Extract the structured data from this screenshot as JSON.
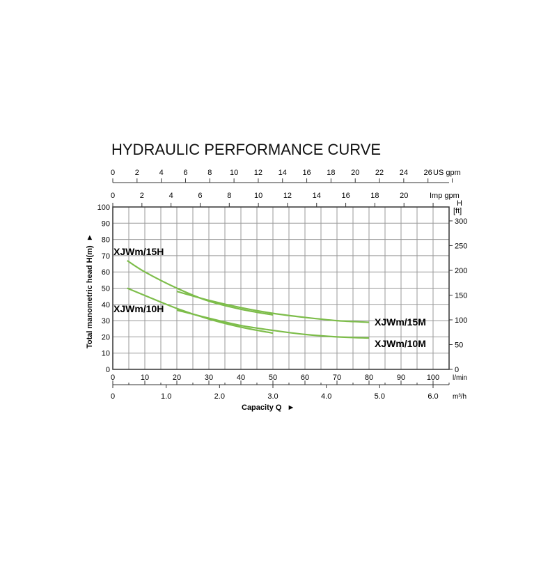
{
  "chart_data": {
    "type": "line",
    "title": "HYDRAULIC PERFORMANCE CURVE",
    "xlabel": "Capacity Q",
    "ylabel": "Total manometric head H(m)",
    "right_axis_label": [
      "H",
      "[ft]"
    ],
    "xlim": [
      0,
      105
    ],
    "ylim": [
      0,
      100
    ],
    "grid": true,
    "x_ticks_lmin": [
      0,
      10,
      20,
      30,
      40,
      50,
      60,
      70,
      80,
      90,
      100
    ],
    "x_unit_lmin": "l/min",
    "x_ticks_m3h": [
      "0",
      "1.0",
      "2.0",
      "3.0",
      "4.0",
      "5.0",
      "6.0"
    ],
    "x_unit_m3h": "m³/h",
    "top_ticks_usgpm": [
      0,
      2,
      4,
      6,
      8,
      10,
      12,
      14,
      16,
      18,
      20,
      22,
      24,
      26
    ],
    "top_unit_usgpm": "US gpm",
    "top_ticks_impgpm": [
      0,
      2,
      4,
      6,
      8,
      10,
      12,
      14,
      16,
      18,
      20
    ],
    "top_unit_impgpm": "Imp gpm",
    "y_ticks_m": [
      0,
      10,
      20,
      30,
      40,
      50,
      60,
      70,
      80,
      90,
      100
    ],
    "y_ticks_ft": [
      0,
      50,
      100,
      150,
      200,
      250,
      300
    ],
    "line_color": "#7dbd4a",
    "series": [
      {
        "name": "XJWm/15H",
        "x": [
          4.5,
          10,
          20,
          30,
          40,
          50
        ],
        "y": [
          67,
          60,
          50,
          42,
          37,
          33.5
        ]
      },
      {
        "name": "XJWm/15M",
        "x": [
          20,
          30,
          40,
          50,
          60,
          70,
          80
        ],
        "y": [
          48,
          42.5,
          38,
          34.5,
          32,
          30,
          29
        ]
      },
      {
        "name": "XJWm/10H",
        "x": [
          4.5,
          10,
          20,
          30,
          40,
          50
        ],
        "y": [
          50,
          45.5,
          37.5,
          31,
          26,
          22.3
        ]
      },
      {
        "name": "XJWm/10M",
        "x": [
          20,
          30,
          40,
          50,
          60,
          70,
          80
        ],
        "y": [
          36.5,
          31.5,
          27,
          24,
          21.5,
          20,
          19.3
        ]
      }
    ]
  }
}
